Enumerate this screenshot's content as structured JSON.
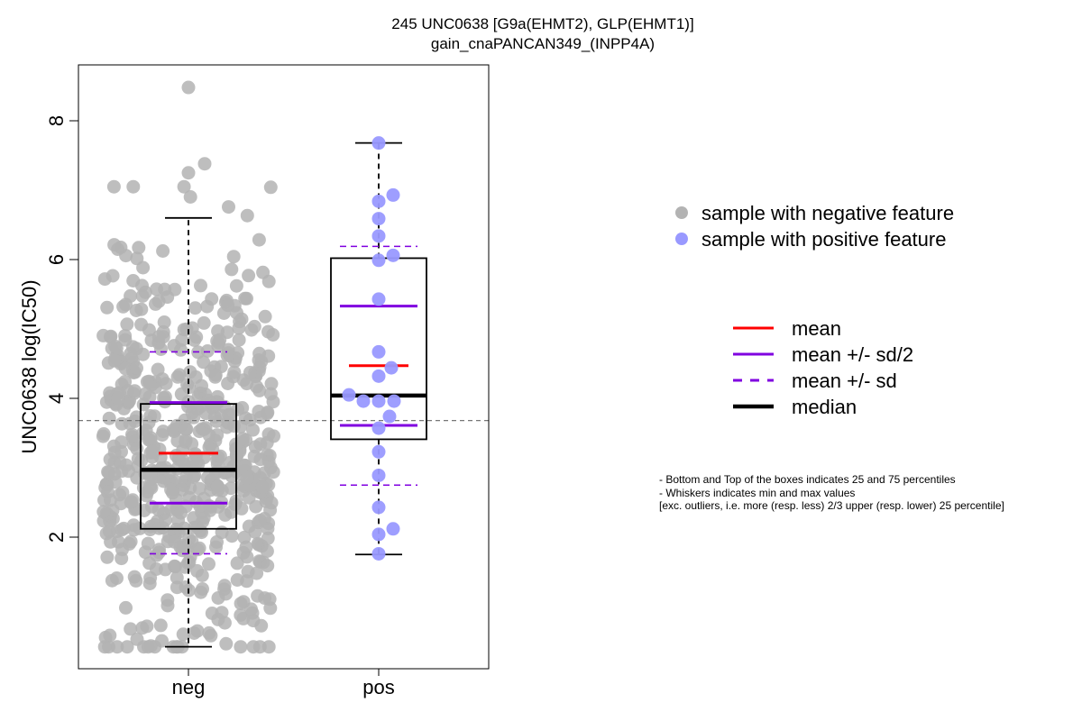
{
  "title_line1": "245 UNC0638 [G9a(EHMT2), GLP(EHMT1)]",
  "title_line2": "gain_cnaPANCAN349_(INPP4A)",
  "chart_data": {
    "type": "box+jitter",
    "ylabel": "UNC0638 log(IC50)",
    "ylim": [
      0.05,
      8.75
    ],
    "yticks": [
      2,
      4,
      6,
      8
    ],
    "categories": [
      "neg",
      "pos"
    ],
    "reference_line_y": 3.68,
    "groups": [
      {
        "name": "neg",
        "color": "#b3b3b3",
        "n_points": 620,
        "q1": 2.12,
        "median": 2.97,
        "q3": 3.92,
        "whisker_low": 0.42,
        "whisker_high": 6.6,
        "mean": 3.21,
        "mean_minus_half_sd": 2.49,
        "mean_plus_half_sd": 3.94,
        "mean_minus_sd": 1.76,
        "mean_plus_sd": 4.67,
        "outliers": [
          8.48,
          7.38,
          7.25
        ]
      },
      {
        "name": "pos",
        "color": "#9999ff",
        "q1": 3.41,
        "median": 4.04,
        "q3": 6.02,
        "whisker_low": 1.75,
        "whisker_high": 7.68,
        "mean": 4.47,
        "mean_minus_half_sd": 3.61,
        "mean_plus_half_sd": 5.33,
        "mean_minus_sd": 2.75,
        "mean_plus_sd": 6.19,
        "points": [
          {
            "y": 7.68,
            "dx": 0
          },
          {
            "y": 6.93,
            "dx": 16
          },
          {
            "y": 6.84,
            "dx": 0
          },
          {
            "y": 6.59,
            "dx": 0
          },
          {
            "y": 6.34,
            "dx": 0
          },
          {
            "y": 6.06,
            "dx": 16
          },
          {
            "y": 5.99,
            "dx": 0
          },
          {
            "y": 5.43,
            "dx": 0
          },
          {
            "y": 4.67,
            "dx": 0
          },
          {
            "y": 4.44,
            "dx": 14
          },
          {
            "y": 4.32,
            "dx": 0
          },
          {
            "y": 4.05,
            "dx": -33
          },
          {
            "y": 3.96,
            "dx": -17
          },
          {
            "y": 3.96,
            "dx": 0
          },
          {
            "y": 3.96,
            "dx": 17
          },
          {
            "y": 3.74,
            "dx": 12
          },
          {
            "y": 3.57,
            "dx": 0
          },
          {
            "y": 3.23,
            "dx": 0
          },
          {
            "y": 2.89,
            "dx": 0
          },
          {
            "y": 2.43,
            "dx": 0
          },
          {
            "y": 2.12,
            "dx": 16
          },
          {
            "y": 2.04,
            "dx": 0
          },
          {
            "y": 1.76,
            "dx": 0
          }
        ]
      }
    ],
    "legend_points": [
      {
        "label": "sample with negative feature",
        "color": "#b3b3b3"
      },
      {
        "label": "sample with positive feature",
        "color": "#9999ff"
      }
    ],
    "legend_lines": [
      {
        "label": "mean",
        "color": "#ff0000",
        "style": "solid"
      },
      {
        "label": "mean +/- sd/2",
        "color": "#8000e0",
        "style": "solid"
      },
      {
        "label": "mean +/- sd",
        "color": "#8000e0",
        "style": "dashed"
      },
      {
        "label": "median",
        "color": "#000000",
        "style": "thick"
      }
    ]
  },
  "notes": [
    "- Bottom and Top of the boxes indicates 25 and 75 percentiles",
    "- Whiskers indicates min and max values",
    "[exc. outliers, i.e. more (resp. less) 2/3 upper (resp. lower) 25 percentile]"
  ]
}
